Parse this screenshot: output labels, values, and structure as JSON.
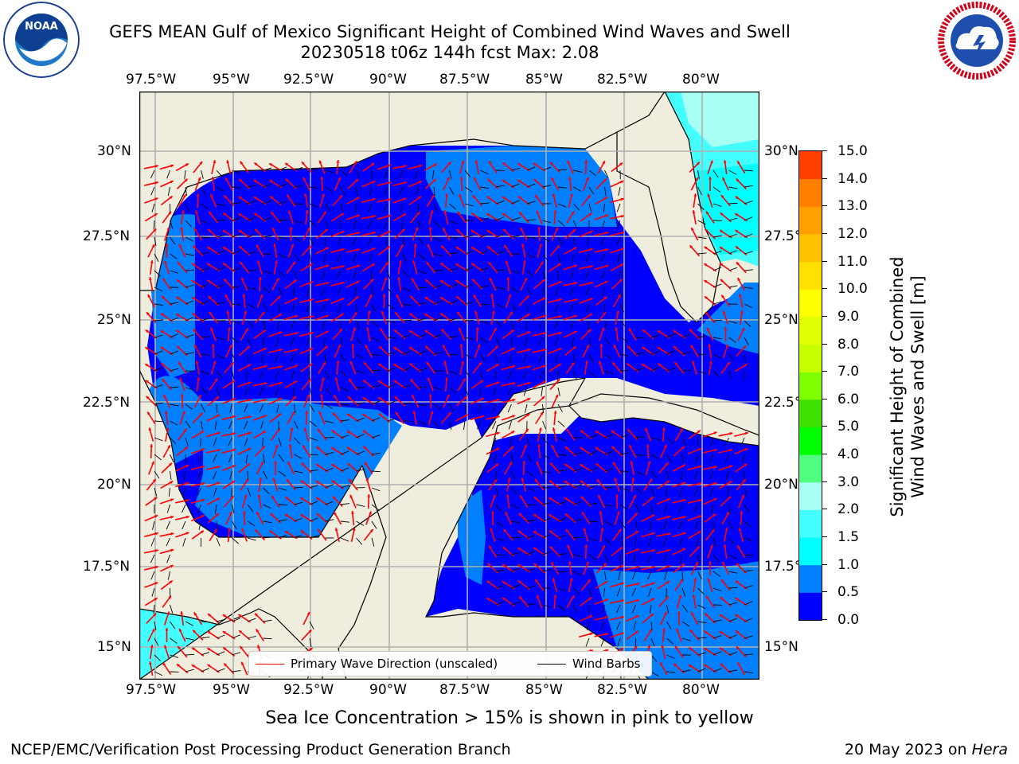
{
  "title": {
    "line1": "GEFS MEAN Gulf of Mexico Significant Height of Combined Wind Waves and Swell",
    "line2": "20230518 t06z 144h fcst   Max: 2.08"
  },
  "logos": {
    "left": {
      "name": "NOAA",
      "ring_text": "NATIONAL OCEANIC AND ATMOSPHERIC ADMINISTRATION · U.S. DEPARTMENT OF COMMERCE",
      "center_text": "NOAA"
    },
    "right": {
      "name": "National Weather Service",
      "ring_text": "NATIONAL WEATHER SERVICE"
    }
  },
  "map": {
    "lon_ticks": [
      "97.5°W",
      "95°W",
      "92.5°W",
      "90°W",
      "87.5°W",
      "85°W",
      "82.5°W",
      "80°W"
    ],
    "lat_ticks": [
      "30°N",
      "27.5°N",
      "25°N",
      "22.5°N",
      "20°N",
      "17.5°N",
      "15°N"
    ],
    "colors": {
      "land": "#efedde",
      "ocean_0": "#0000ff",
      "ocean_05": "#0080ff",
      "ocean_15": "#44ffff",
      "ocean_2": "#a8fff4",
      "grid": "#b0b0b0",
      "arrow": "#ff0000",
      "barb": "#000000"
    }
  },
  "legend": {
    "items": [
      {
        "label": "Primary Wave Direction (unscaled)",
        "color": "#ff0000"
      },
      {
        "label": "Wind Barbs",
        "color": "#000000"
      }
    ]
  },
  "colorbar": {
    "label_line1": "Significant Height of Combined",
    "label_line2": "Wind Waves and Swell [m]",
    "ticks": [
      "15.0",
      "14.0",
      "13.0",
      "12.0",
      "11.0",
      "10.0",
      "9.0",
      "8.0",
      "7.0",
      "6.0",
      "5.0",
      "4.0",
      "3.0",
      "2.0",
      "1.5",
      "1.0",
      "0.5",
      "0.0"
    ],
    "colors": [
      "#0000ff",
      "#0080ff",
      "#00ffff",
      "#44ffff",
      "#a8fff4",
      "#50ff80",
      "#00ff00",
      "#40e000",
      "#80ff00",
      "#c8ff00",
      "#e0ff00",
      "#ffff00",
      "#ffe000",
      "#ffc000",
      "#ffa000",
      "#ff8000",
      "#ff4000",
      "#ff0000"
    ]
  },
  "footer": {
    "caption": "Sea Ice Concentration > 15% is shown in pink to yellow",
    "left": "NCEP/EMC/Verification Post Processing Product Generation Branch",
    "right_date": "20 May 2023 on",
    "right_host": "Hera"
  }
}
